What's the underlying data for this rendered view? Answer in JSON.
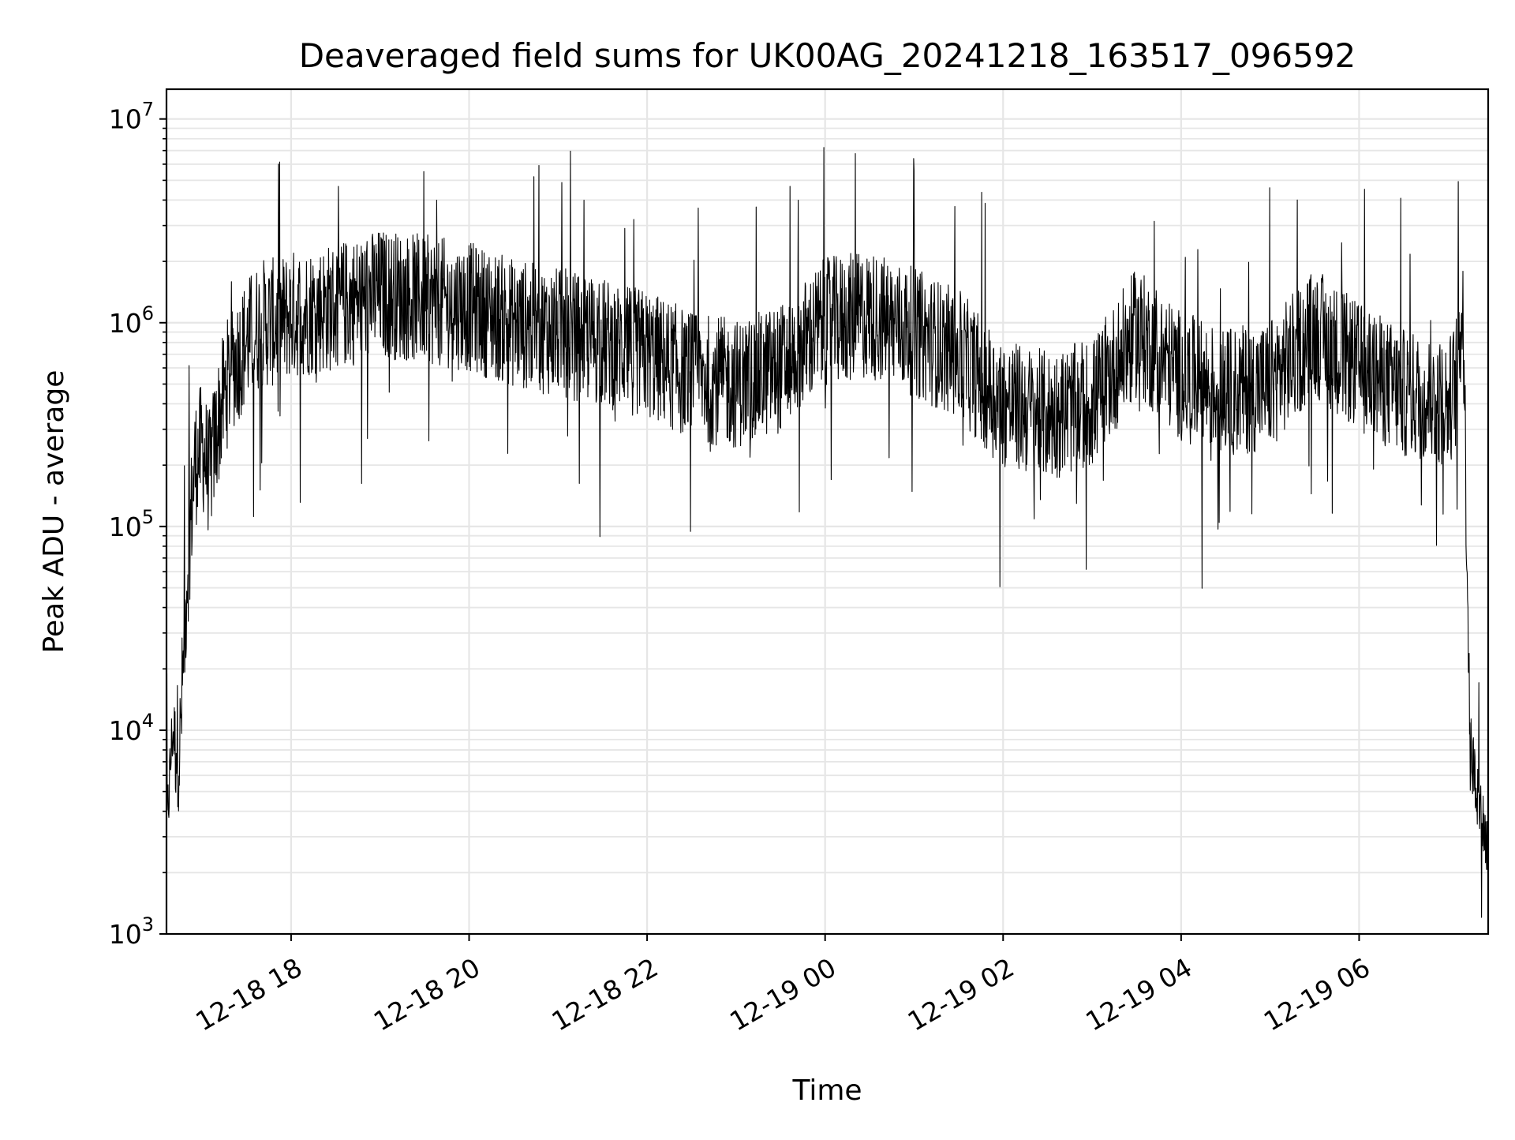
{
  "chart_data": {
    "type": "line",
    "title": "Deaveraged field sums for UK00AG_20241218_163517_096592",
    "xlabel": "Time",
    "ylabel": "Peak ADU - average",
    "yscale": "log",
    "ylim": [
      1000,
      14000000
    ],
    "xlim": [
      "2024-12-18 16:36",
      "2024-12-19 07:27"
    ],
    "grid": true,
    "line_color": "#000000",
    "grid_color": "#e6e6e6",
    "x_ticks": [
      {
        "value": "2024-12-18 18:00",
        "label": "12-18 18"
      },
      {
        "value": "2024-12-18 20:00",
        "label": "12-18 20"
      },
      {
        "value": "2024-12-18 22:00",
        "label": "12-18 22"
      },
      {
        "value": "2024-12-19 00:00",
        "label": "12-19 00"
      },
      {
        "value": "2024-12-19 02:00",
        "label": "12-19 02"
      },
      {
        "value": "2024-12-19 04:00",
        "label": "12-19 04"
      },
      {
        "value": "2024-12-19 06:00",
        "label": "12-19 06"
      }
    ],
    "y_ticks": [
      {
        "value": 1000,
        "base": "10",
        "exp": "3"
      },
      {
        "value": 10000,
        "base": "10",
        "exp": "4"
      },
      {
        "value": 100000,
        "base": "10",
        "exp": "5"
      },
      {
        "value": 1000000,
        "base": "10",
        "exp": "6"
      },
      {
        "value": 10000000,
        "base": "10",
        "exp": "7"
      }
    ],
    "series": [
      {
        "x": [
          "2024-12-18 16:36",
          "2024-12-18 16:40",
          "2024-12-18 16:45",
          "2024-12-18 16:50",
          "2024-12-18 16:55",
          "2024-12-18 17:00",
          "2024-12-18 17:05",
          "2024-12-18 17:10",
          "2024-12-18 17:15",
          "2024-12-18 17:20",
          "2024-12-18 17:30",
          "2024-12-18 17:40",
          "2024-12-18 17:50",
          "2024-12-18 18:00",
          "2024-12-18 18:30",
          "2024-12-18 19:00",
          "2024-12-18 19:30",
          "2024-12-18 20:00",
          "2024-12-18 20:30",
          "2024-12-18 21:00",
          "2024-12-18 21:30",
          "2024-12-18 22:00",
          "2024-12-18 22:30",
          "2024-12-18 23:00",
          "2024-12-18 23:30",
          "2024-12-19 00:00",
          "2024-12-19 00:30",
          "2024-12-19 01:00",
          "2024-12-19 01:30",
          "2024-12-19 02:00",
          "2024-12-19 02:30",
          "2024-12-19 03:00",
          "2024-12-19 03:30",
          "2024-12-19 04:00",
          "2024-12-19 04:30",
          "2024-12-19 05:00",
          "2024-12-19 05:30",
          "2024-12-19 06:00",
          "2024-12-19 06:30",
          "2024-12-19 07:00",
          "2024-12-19 07:05",
          "2024-12-19 07:10",
          "2024-12-19 07:15",
          "2024-12-19 07:20",
          "2024-12-19 07:27"
        ],
        "y": [
          3000,
          10000,
          8000,
          60000,
          200000,
          250000,
          180000,
          300000,
          450000,
          600000,
          800000,
          1000000,
          1000000,
          1100000,
          1200000,
          1400000,
          1300000,
          1200000,
          1000000,
          900000,
          800000,
          700000,
          550000,
          500000,
          600000,
          1000000,
          1100000,
          900000,
          700000,
          400000,
          350000,
          400000,
          900000,
          550000,
          450000,
          500000,
          900000,
          600000,
          450000,
          400000,
          500000,
          1300000,
          8000,
          5000,
          2500
        ]
      }
    ]
  }
}
